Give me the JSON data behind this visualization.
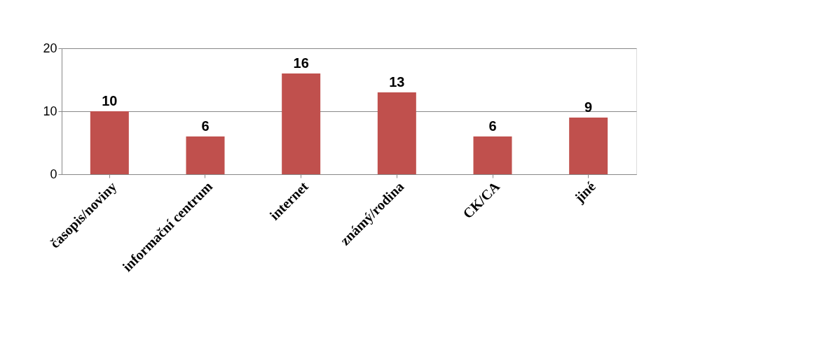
{
  "chart_data": {
    "type": "bar",
    "categories": [
      "časopis/noviny",
      "informační centrum",
      "internet",
      "známý/rodina",
      "CK/CA",
      "jiné"
    ],
    "values": [
      10,
      6,
      16,
      13,
      6,
      9
    ],
    "color": "#c0504d",
    "ylim": [
      0,
      20
    ],
    "yticks": [
      0,
      10,
      20
    ],
    "grid": "y",
    "data_labels": true
  }
}
